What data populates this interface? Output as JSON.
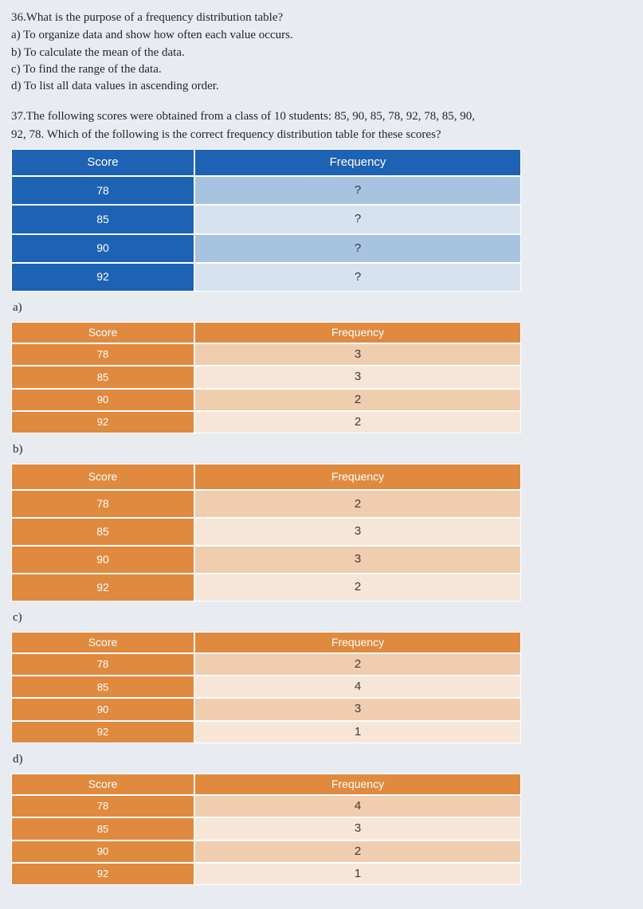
{
  "q36": {
    "text": "36.What is the purpose of a frequency distribution table?",
    "a": "a) To organize data and show how often each value occurs.",
    "b": "b) To calculate the mean of the data.",
    "c": "c) To find the range of the data.",
    "d": "d) To list all data values in ascending order."
  },
  "q37": {
    "line1": "37.The following scores were obtained from a class of 10 students: 85, 90, 85, 78, 92, 78, 85, 90,",
    "line2": "92, 78. Which of the following is the correct frequency distribution table for these scores?",
    "stem_table": {
      "headers": {
        "score": "Score",
        "freq": "Frequency"
      },
      "rows": [
        {
          "score": "78",
          "freq": "?"
        },
        {
          "score": "85",
          "freq": "?"
        },
        {
          "score": "90",
          "freq": "?"
        },
        {
          "score": "92",
          "freq": "?"
        }
      ],
      "colors": {
        "header_bg": "#1e62b3",
        "score_bg": "#1e62b3",
        "row_alt1": "#a8c3e0",
        "row_alt2": "#d6e2ef",
        "text_light": "#ffffff",
        "text_dark": "#2a3a4a"
      }
    },
    "options": {
      "a": {
        "label": "a)",
        "headers": {
          "score": "Score",
          "freq": "Frequency"
        },
        "rows": [
          {
            "score": "78",
            "freq": "3"
          },
          {
            "score": "85",
            "freq": "3"
          },
          {
            "score": "90",
            "freq": "2"
          },
          {
            "score": "92",
            "freq": "2"
          }
        ]
      },
      "b": {
        "label": "b)",
        "headers": {
          "score": "Score",
          "freq": "Frequency"
        },
        "rows": [
          {
            "score": "78",
            "freq": "2"
          },
          {
            "score": "85",
            "freq": "3"
          },
          {
            "score": "90",
            "freq": "3"
          },
          {
            "score": "92",
            "freq": "2"
          }
        ]
      },
      "c": {
        "label": "c)",
        "headers": {
          "score": "Score",
          "freq": "Frequency"
        },
        "rows": [
          {
            "score": "78",
            "freq": "2"
          },
          {
            "score": "85",
            "freq": "4"
          },
          {
            "score": "90",
            "freq": "3"
          },
          {
            "score": "92",
            "freq": "1"
          }
        ]
      },
      "d": {
        "label": "d)",
        "headers": {
          "score": "Score",
          "freq": "Frequency"
        },
        "rows": [
          {
            "score": "78",
            "freq": "4"
          },
          {
            "score": "85",
            "freq": "3"
          },
          {
            "score": "90",
            "freq": "2"
          },
          {
            "score": "92",
            "freq": "1"
          }
        ]
      }
    },
    "orange_colors": {
      "header_bg": "#e08a3f",
      "score_bg": "#e08a3f",
      "row_alt1": "#f0cdaf",
      "row_alt2": "#f7e6d7",
      "text_light": "#ffffff",
      "text_dark": "#3a3a3a"
    }
  }
}
